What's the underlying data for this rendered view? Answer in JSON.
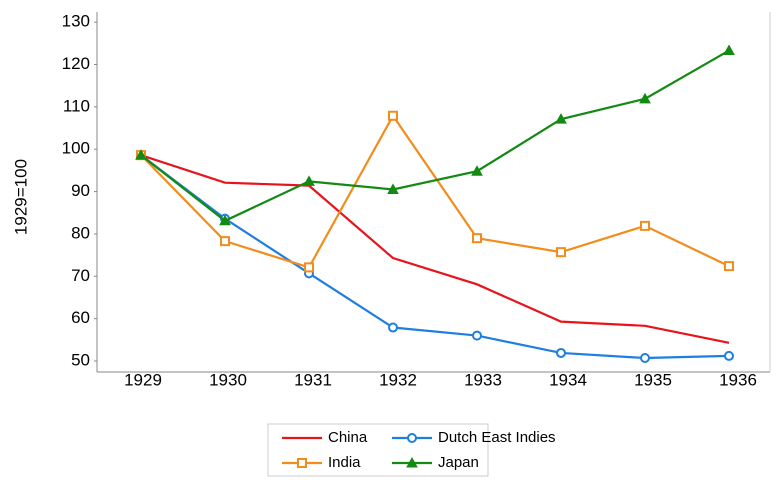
{
  "chart_data": {
    "type": "line",
    "y_axis_label": "1929=100",
    "categories": [
      "1929",
      "1930",
      "1931",
      "1932",
      "1933",
      "1934",
      "1935",
      "1936"
    ],
    "series": [
      {
        "name": "China",
        "color": "#e8141b",
        "marker": "none",
        "values": [
          98.6,
          92.1,
          91.4,
          74.3,
          68.1,
          59.3,
          58.3,
          54.3
        ]
      },
      {
        "name": "Dutch East Indies",
        "color": "#1f7fe0",
        "marker": "circle",
        "values": [
          98.6,
          83.6,
          70.7,
          57.9,
          56.0,
          51.9,
          50.7,
          51.2
        ]
      },
      {
        "name": "India",
        "color": "#f28c1c",
        "marker": "square",
        "values": [
          98.6,
          78.3,
          72.1,
          107.9,
          79.0,
          75.7,
          81.9,
          72.4
        ]
      },
      {
        "name": "Japan",
        "color": "#138a13",
        "marker": "triangle",
        "values": [
          98.6,
          83.1,
          92.4,
          90.5,
          94.8,
          107.1,
          111.9,
          123.3
        ]
      }
    ],
    "ylim": [
      47.4,
      132.4
    ],
    "yticks": [
      50,
      60,
      70,
      80,
      90,
      100,
      110,
      120,
      130
    ]
  }
}
